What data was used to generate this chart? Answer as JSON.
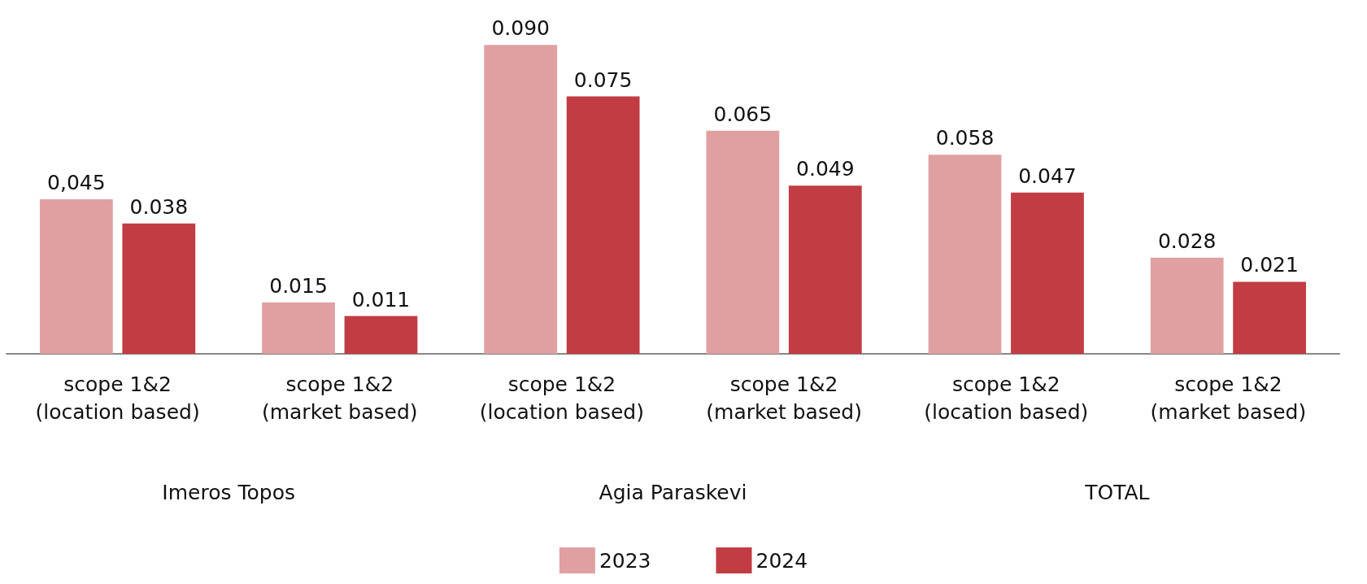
{
  "chart_data": {
    "type": "bar",
    "categories": [
      "scope 1&2\n(location based)",
      "scope 1&2\n(market based)",
      "scope 1&2\n(location based)",
      "scope 1&2\n(market based)",
      "scope 1&2\n(location based)",
      "scope 1&2\n(market based)"
    ],
    "series": [
      {
        "name": "2023",
        "color": "#e0a0a2",
        "values": [
          0.045,
          0.015,
          0.09,
          0.065,
          0.058,
          0.028
        ],
        "value_labels": [
          "0,045",
          "0.015",
          "0.090",
          "0.065",
          "0.058",
          "0.028"
        ]
      },
      {
        "name": "2024",
        "color": "#c23c43",
        "values": [
          0.038,
          0.011,
          0.075,
          0.049,
          0.047,
          0.021
        ],
        "value_labels": [
          "0.038",
          "0.011",
          "0.075",
          "0.049",
          "0.047",
          "0.021"
        ]
      }
    ],
    "annotations": [
      "Imeros Topos",
      "Agia Paraskevi",
      "TOTAL"
    ],
    "legend": "bottom",
    "tick_labels": "x"
  }
}
